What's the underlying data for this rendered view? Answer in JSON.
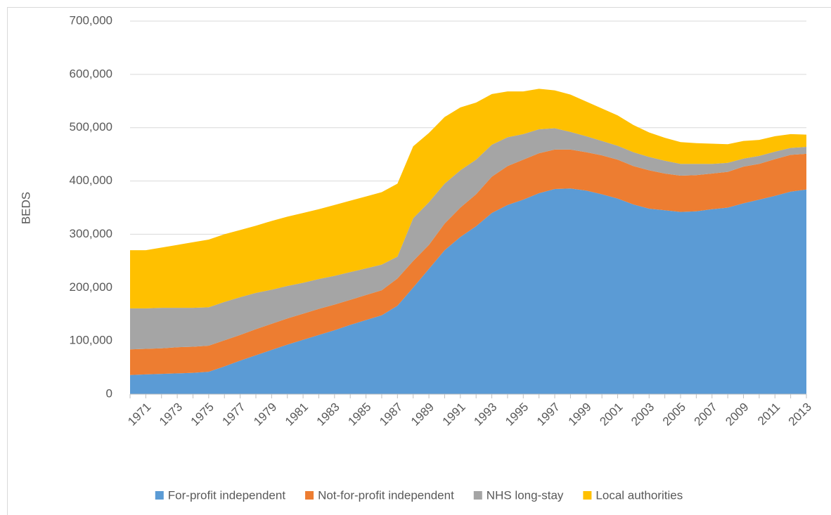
{
  "chart_data": {
    "type": "stacked_area",
    "y_label": "BEDS",
    "categories": [
      null,
      "1971",
      null,
      "1973",
      null,
      "1975",
      null,
      "1977",
      null,
      "1979",
      null,
      "1981",
      null,
      "1983",
      null,
      "1985",
      null,
      "1987",
      null,
      "1989",
      null,
      "1991",
      null,
      "1993",
      null,
      "1995",
      null,
      "1997",
      null,
      "1999",
      null,
      "2001",
      null,
      "2003",
      null,
      "2005",
      null,
      "2007",
      null,
      "2009",
      null,
      "2011",
      null,
      "2013"
    ],
    "series": [
      {
        "name": "For-profit independent",
        "color": "#5b9bd5",
        "values": [
          36000,
          37000,
          38000,
          39000,
          40000,
          42000,
          52000,
          63000,
          73000,
          83000,
          93000,
          102000,
          111000,
          120000,
          130000,
          139000,
          148000,
          166000,
          200000,
          235000,
          270000,
          295000,
          315000,
          340000,
          355000,
          365000,
          377000,
          385000,
          386000,
          382000,
          375000,
          367000,
          356000,
          348000,
          345000,
          342000,
          343000,
          347000,
          350000,
          358000,
          365000,
          372000,
          380000,
          384000
        ]
      },
      {
        "name": "Not-for-profit independent",
        "color": "#ed7d31",
        "values": [
          48000,
          48000,
          48000,
          49000,
          49000,
          49000,
          49000,
          48000,
          49000,
          49000,
          49000,
          49000,
          49000,
          48000,
          47000,
          47000,
          47000,
          51000,
          50000,
          45000,
          50000,
          55000,
          60000,
          68000,
          73000,
          75000,
          75000,
          74000,
          73000,
          72000,
          73000,
          73000,
          72000,
          72000,
          69000,
          68000,
          68000,
          67000,
          67000,
          69000,
          67000,
          69000,
          69000,
          67000
        ]
      },
      {
        "name": "NHS long-stay",
        "color": "#a5a5a5",
        "values": [
          77000,
          76000,
          76000,
          74000,
          73000,
          72000,
          72000,
          71000,
          68000,
          64000,
          61000,
          58000,
          56000,
          54000,
          52000,
          50000,
          48000,
          41000,
          80000,
          80000,
          75000,
          70000,
          65000,
          60000,
          54000,
          48000,
          45000,
          40000,
          33000,
          30000,
          27000,
          26000,
          26000,
          25000,
          24000,
          22000,
          21000,
          18000,
          17000,
          15000,
          15000,
          14000,
          13000,
          13000
        ]
      },
      {
        "name": "Local authorities",
        "color": "#ffc000",
        "values": [
          109000,
          109000,
          113000,
          118000,
          123000,
          127000,
          127000,
          126000,
          126000,
          129000,
          130000,
          131000,
          131000,
          133000,
          134000,
          135000,
          136000,
          137000,
          135000,
          130000,
          125000,
          118000,
          107000,
          95000,
          86000,
          80000,
          76000,
          71000,
          70000,
          65000,
          61000,
          57000,
          51000,
          46000,
          43000,
          41000,
          39000,
          38000,
          35000,
          33000,
          30000,
          29000,
          26000,
          23000
        ]
      }
    ],
    "ylim": [
      0,
      700000
    ],
    "yticks": [
      0,
      {
        "value": 100000,
        "label": "100,000"
      },
      {
        "value": 200000,
        "label": "200,000"
      },
      {
        "value": 300000,
        "label": "300,000"
      },
      {
        "value": 400000,
        "label": "400,000"
      },
      {
        "value": 500000,
        "label": "500,000"
      },
      {
        "value": 600000,
        "label": "600,000"
      },
      {
        "value": 700000,
        "label": "700,000"
      }
    ],
    "grid": true,
    "legend": "bottom"
  }
}
